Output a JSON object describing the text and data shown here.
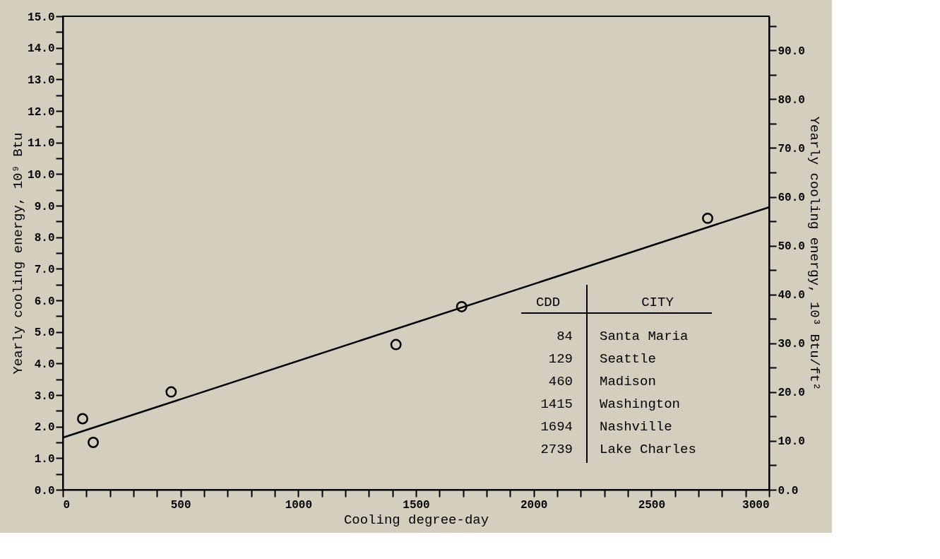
{
  "chart_data": {
    "type": "scatter",
    "xlabel": "Cooling degree-day",
    "ylabel": "Yearly cooling energy, 10⁹ Btu",
    "y2label": "Yearly cooling energy, 10³ Btu/ft²",
    "series": [
      {
        "type": "scatter",
        "color": "#000000",
        "marker": "circle",
        "x": [
          84,
          129,
          460,
          1415,
          1694,
          2739
        ],
        "values": [
          2.25,
          1.5,
          3.1,
          4.6,
          5.8,
          8.6
        ]
      },
      {
        "type": "line",
        "color": "#000000",
        "marker": "none",
        "line_style": "solid",
        "x": [
          0,
          3000
        ],
        "values": [
          1.65,
          8.95
        ]
      }
    ],
    "xlim": [
      0,
      3000
    ],
    "ylim": [
      0,
      15
    ],
    "y2lim": [
      0,
      97
    ],
    "xticks": [
      0,
      {
        "value": 100,
        "label": null
      },
      {
        "value": 200,
        "label": null
      },
      {
        "value": 300,
        "label": null
      },
      {
        "value": 400,
        "label": null
      },
      500,
      {
        "value": 600,
        "label": null
      },
      {
        "value": 700,
        "label": null
      },
      {
        "value": 800,
        "label": null
      },
      {
        "value": 900,
        "label": null
      },
      1000,
      {
        "value": 1100,
        "label": null
      },
      {
        "value": 1200,
        "label": null
      },
      {
        "value": 1300,
        "label": null
      },
      {
        "value": 1400,
        "label": null
      },
      1500,
      {
        "value": 1600,
        "label": null
      },
      {
        "value": 1700,
        "label": null
      },
      {
        "value": 1800,
        "label": null
      },
      {
        "value": 1900,
        "label": null
      },
      2000,
      {
        "value": 2100,
        "label": null
      },
      {
        "value": 2200,
        "label": null
      },
      {
        "value": 2300,
        "label": null
      },
      {
        "value": 2400,
        "label": null
      },
      2500,
      {
        "value": 2600,
        "label": null
      },
      {
        "value": 2700,
        "label": null
      },
      {
        "value": 2800,
        "label": null
      },
      {
        "value": 2900,
        "label": null
      },
      3000
    ],
    "yticks": [
      {
        "value": 0,
        "label": "0.0"
      },
      {
        "value": 0.5,
        "label": null
      },
      {
        "value": 1,
        "label": "1.0"
      },
      {
        "value": 1.5,
        "label": null
      },
      {
        "value": 2,
        "label": "2.0"
      },
      {
        "value": 2.5,
        "label": null
      },
      {
        "value": 3,
        "label": "3.0"
      },
      {
        "value": 3.5,
        "label": null
      },
      {
        "value": 4,
        "label": "4.0"
      },
      {
        "value": 4.5,
        "label": null
      },
      {
        "value": 5,
        "label": "5.0"
      },
      {
        "value": 5.5,
        "label": null
      },
      {
        "value": 6,
        "label": "6.0"
      },
      {
        "value": 6.5,
        "label": null
      },
      {
        "value": 7,
        "label": "7.0"
      },
      {
        "value": 7.5,
        "label": null
      },
      {
        "value": 8,
        "label": "8.0"
      },
      {
        "value": 8.5,
        "label": null
      },
      {
        "value": 9,
        "label": "9.0"
      },
      {
        "value": 9.5,
        "label": null
      },
      {
        "value": 10,
        "label": "10.0"
      },
      {
        "value": 10.5,
        "label": null
      },
      {
        "value": 11,
        "label": "11.0"
      },
      {
        "value": 11.5,
        "label": null
      },
      {
        "value": 12,
        "label": "12.0"
      },
      {
        "value": 12.5,
        "label": null
      },
      {
        "value": 13,
        "label": "13.0"
      },
      {
        "value": 13.5,
        "label": null
      },
      {
        "value": 14,
        "label": "14.0"
      },
      {
        "value": 14.5,
        "label": null
      },
      {
        "value": 15,
        "label": "15.0"
      }
    ],
    "y2ticks": [
      {
        "value": 0,
        "label": "0.0"
      },
      {
        "value": 5,
        "label": null
      },
      {
        "value": 10,
        "label": "10.0"
      },
      {
        "value": 15,
        "label": null
      },
      {
        "value": 20,
        "label": "20.0"
      },
      {
        "value": 25,
        "label": null
      },
      {
        "value": 30,
        "label": "30.0"
      },
      {
        "value": 35,
        "label": null
      },
      {
        "value": 40,
        "label": "40.0"
      },
      {
        "value": 45,
        "label": null
      },
      {
        "value": 50,
        "label": "50.0"
      },
      {
        "value": 55,
        "label": null
      },
      {
        "value": 60,
        "label": "60.0"
      },
      {
        "value": 65,
        "label": null
      },
      {
        "value": 70,
        "label": "70.0"
      },
      {
        "value": 75,
        "label": null
      },
      {
        "value": 80,
        "label": "80.0"
      },
      {
        "value": 85,
        "label": null
      },
      {
        "value": 90,
        "label": "90.0"
      },
      {
        "value": 95,
        "label": null
      }
    ],
    "grid": false,
    "annotations": [
      "CDD",
      "CITY",
      "84",
      "Santa Maria",
      "129",
      "Seattle",
      "460",
      "Madison",
      "1415",
      "Washington",
      "1694",
      "Nashville",
      "2739",
      "Lake Charles"
    ]
  }
}
